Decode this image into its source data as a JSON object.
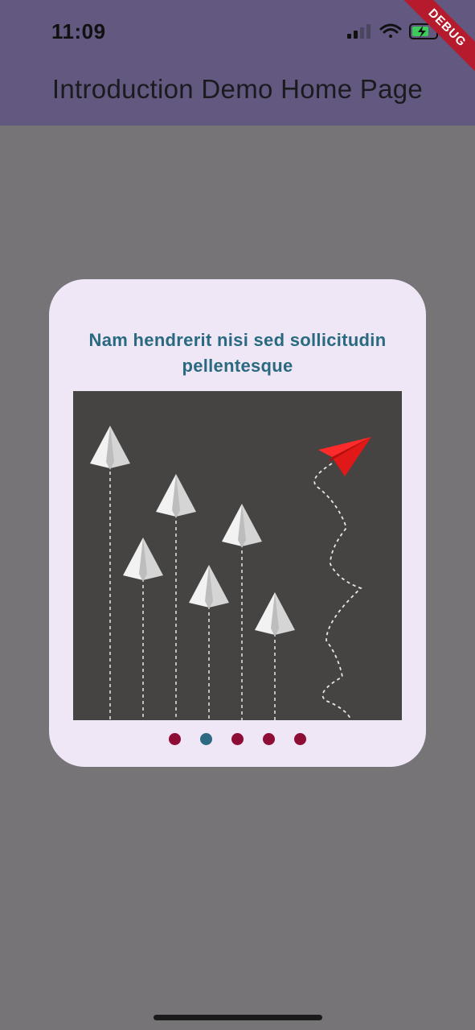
{
  "status_bar": {
    "time": "11:09"
  },
  "app_bar": {
    "title": "Introduction Demo Home Page",
    "color": "#625880"
  },
  "debug_banner": {
    "label": "DEBUG"
  },
  "intro_card": {
    "title": "Nam hendrerit nisi sed sollicitudin pellentesque",
    "illustration": "paper-planes-leader-illustration",
    "pager": {
      "count": 5,
      "active_index": 1,
      "active_color": "#2b6a80",
      "inactive_color": "#8e0d35"
    }
  }
}
